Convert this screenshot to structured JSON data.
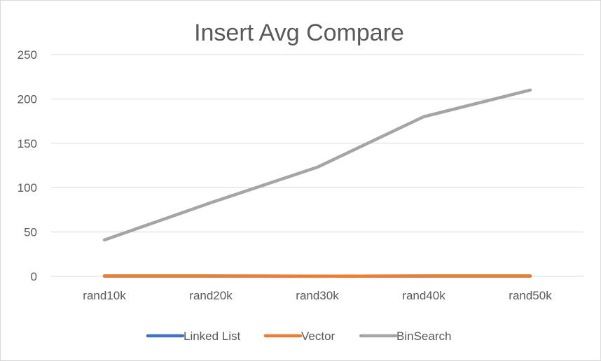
{
  "chart_data": {
    "type": "line",
    "title": "Insert Avg Compare",
    "categories": [
      "rand10k",
      "rand20k",
      "rand30k",
      "rand40k",
      "rand50k"
    ],
    "ylim": [
      0,
      250
    ],
    "yticks": [
      0,
      50,
      100,
      150,
      200,
      250
    ],
    "grid": true,
    "legend_position": "bottom",
    "series": [
      {
        "name": "Linked List",
        "color": "#4472C4",
        "values": [
          0.3,
          0.3,
          0.2,
          0.3,
          0.3
        ]
      },
      {
        "name": "Vector",
        "color": "#ED7D31",
        "values": [
          0.5,
          0.5,
          0.1,
          0.5,
          0.5
        ]
      },
      {
        "name": "BinSearch",
        "color": "#A5A5A5",
        "values": [
          41,
          83,
          123,
          180,
          210
        ]
      }
    ]
  }
}
